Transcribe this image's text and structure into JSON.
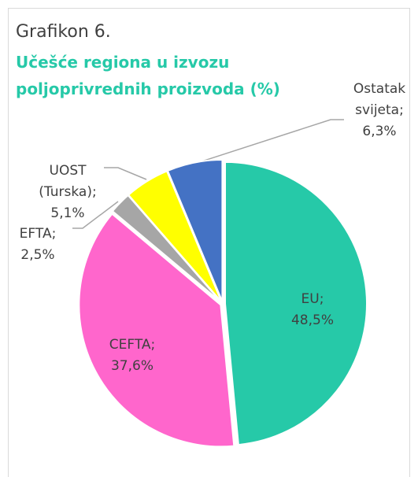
{
  "chart_data": {
    "type": "pie",
    "title": "Grafikon 6.",
    "subtitle": "Učešće regiona u izvozu poljoprivrednih proizvoda (%)",
    "categories": [
      "EU;",
      "CEFTA;",
      "EFTA;",
      "UOST (Turska);",
      "Ostatak svijeta;"
    ],
    "values": [
      48.5,
      37.6,
      2.5,
      5.1,
      6.3
    ],
    "value_labels": [
      "48,5%",
      "37,6%",
      "2,5%",
      "5,1%",
      "6,3%"
    ],
    "colors": [
      "#26c9a8",
      "#ff66cc",
      "#a6a6a6",
      "#ffff00",
      "#4472c4"
    ]
  }
}
